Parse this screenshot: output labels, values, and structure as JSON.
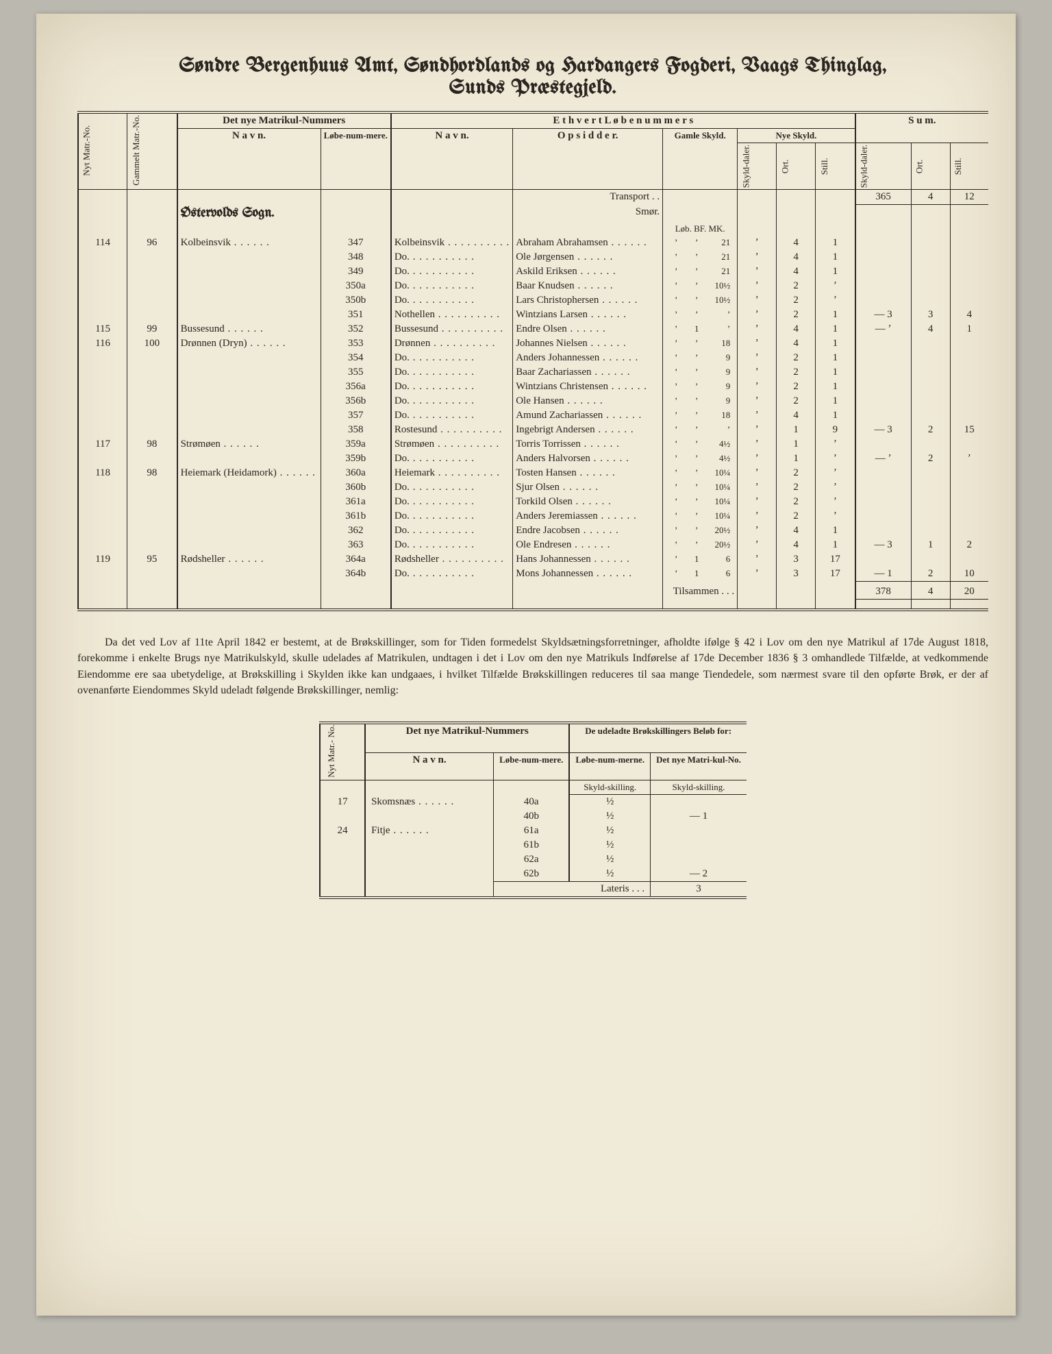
{
  "title_line1": "Søndre Bergenhuus Amt, Søndhordlands og Hardangers Fogderi, Vaags Thinglag,",
  "title_line2": "Sunds Præstegjeld.",
  "hdr": {
    "nyt_matr_no": "Nyt Matr.-No.",
    "gammelt_matr_no": "Gammelt Matr.-No.",
    "det_nye": "Det nye Matrikul-Nummers",
    "navn": "N a v n.",
    "lobenummere": "Løbe-num-mere.",
    "ethvert": "E t h v e r t   L ø b e n u m m e r s",
    "opsidder": "O p s i d d e r.",
    "gamle_skyld": "Gamle Skyld.",
    "nye_skyld": "Nye Skyld.",
    "skyld_daler": "Skyld-daler.",
    "ort": "Ort.",
    "still": "Still.",
    "sum": "S u m."
  },
  "transport": "Transport . .",
  "smor": "Smør.",
  "units": "Løb. BF. MK.",
  "sogn": "Østervolds Sogn.",
  "tilsammen": "Tilsammen . . .",
  "transport_sum": {
    "daler": "365",
    "ort": "4",
    "still": "12"
  },
  "tilsammen_sum": {
    "daler": "378",
    "ort": "4",
    "still": "20"
  },
  "rows": [
    {
      "nyt": "114",
      "gml": "96",
      "navn": "Kolbeinsvik",
      "lnr": "347",
      "lobnavn": "Kolbeinsvik",
      "ops": "Abraham Abrahamsen",
      "gs1": "ʼ",
      "gs2": "ʼ",
      "gs3": "21",
      "nd": "ʼ",
      "no": "4",
      "ns": "1",
      "sd": "",
      "so": "",
      "ss": ""
    },
    {
      "nyt": "",
      "gml": "",
      "navn": "",
      "lnr": "348",
      "lobnavn": "Do.",
      "ops": "Ole Jørgensen",
      "gs1": "ʼ",
      "gs2": "ʼ",
      "gs3": "21",
      "nd": "ʼ",
      "no": "4",
      "ns": "1",
      "sd": "",
      "so": "",
      "ss": ""
    },
    {
      "nyt": "",
      "gml": "",
      "navn": "",
      "lnr": "349",
      "lobnavn": "Do.",
      "ops": "Askild Eriksen",
      "gs1": "ʼ",
      "gs2": "ʼ",
      "gs3": "21",
      "nd": "ʼ",
      "no": "4",
      "ns": "1",
      "sd": "",
      "so": "",
      "ss": ""
    },
    {
      "nyt": "",
      "gml": "",
      "navn": "",
      "lnr": "350a",
      "lobnavn": "Do.",
      "ops": "Baar Knudsen",
      "gs1": "ʼ",
      "gs2": "ʼ",
      "gs3": "10½",
      "nd": "ʼ",
      "no": "2",
      "ns": "ʼ",
      "sd": "",
      "so": "",
      "ss": ""
    },
    {
      "nyt": "",
      "gml": "",
      "navn": "",
      "lnr": "350b",
      "lobnavn": "Do.",
      "ops": "Lars Christophersen",
      "gs1": "ʼ",
      "gs2": "ʼ",
      "gs3": "10½",
      "nd": "ʼ",
      "no": "2",
      "ns": "ʼ",
      "sd": "",
      "so": "",
      "ss": ""
    },
    {
      "nyt": "",
      "gml": "",
      "navn": "",
      "lnr": "351",
      "lobnavn": "Nothellen",
      "ops": "Wintzians Larsen",
      "gs1": "ʼ",
      "gs2": "ʼ",
      "gs3": "ʼ",
      "nd": "ʼ",
      "no": "2",
      "ns": "1",
      "sd": "— 3",
      "so": "3",
      "ss": "4"
    },
    {
      "nyt": "115",
      "gml": "99",
      "navn": "Bussesund",
      "lnr": "352",
      "lobnavn": "Bussesund",
      "ops": "Endre Olsen",
      "gs1": "ʼ",
      "gs2": "1",
      "gs3": "ʼ",
      "nd": "ʼ",
      "no": "4",
      "ns": "1",
      "sd": "— ʼ",
      "so": "4",
      "ss": "1"
    },
    {
      "nyt": "116",
      "gml": "100",
      "navn": "Drønnen (Dryn)",
      "lnr": "353",
      "lobnavn": "Drønnen",
      "ops": "Johannes Nielsen",
      "gs1": "ʼ",
      "gs2": "ʼ",
      "gs3": "18",
      "nd": "ʼ",
      "no": "4",
      "ns": "1",
      "sd": "",
      "so": "",
      "ss": ""
    },
    {
      "nyt": "",
      "gml": "",
      "navn": "",
      "lnr": "354",
      "lobnavn": "Do.",
      "ops": "Anders Johannessen",
      "gs1": "ʼ",
      "gs2": "ʼ",
      "gs3": "9",
      "nd": "ʼ",
      "no": "2",
      "ns": "1",
      "sd": "",
      "so": "",
      "ss": ""
    },
    {
      "nyt": "",
      "gml": "",
      "navn": "",
      "lnr": "355",
      "lobnavn": "Do.",
      "ops": "Baar Zachariassen",
      "gs1": "ʼ",
      "gs2": "ʼ",
      "gs3": "9",
      "nd": "ʼ",
      "no": "2",
      "ns": "1",
      "sd": "",
      "so": "",
      "ss": ""
    },
    {
      "nyt": "",
      "gml": "",
      "navn": "",
      "lnr": "356a",
      "lobnavn": "Do.",
      "ops": "Wintzians Christensen",
      "gs1": "ʼ",
      "gs2": "ʼ",
      "gs3": "9",
      "nd": "ʼ",
      "no": "2",
      "ns": "1",
      "sd": "",
      "so": "",
      "ss": ""
    },
    {
      "nyt": "",
      "gml": "",
      "navn": "",
      "lnr": "356b",
      "lobnavn": "Do.",
      "ops": "Ole Hansen",
      "gs1": "ʼ",
      "gs2": "ʼ",
      "gs3": "9",
      "nd": "ʼ",
      "no": "2",
      "ns": "1",
      "sd": "",
      "so": "",
      "ss": ""
    },
    {
      "nyt": "",
      "gml": "",
      "navn": "",
      "lnr": "357",
      "lobnavn": "Do.",
      "ops": "Amund Zachariassen",
      "gs1": "ʼ",
      "gs2": "ʼ",
      "gs3": "18",
      "nd": "ʼ",
      "no": "4",
      "ns": "1",
      "sd": "",
      "so": "",
      "ss": ""
    },
    {
      "nyt": "",
      "gml": "",
      "navn": "",
      "lnr": "358",
      "lobnavn": "Rostesund",
      "ops": "Ingebrigt Andersen",
      "gs1": "ʼ",
      "gs2": "ʼ",
      "gs3": "ʼ",
      "nd": "ʼ",
      "no": "1",
      "ns": "9",
      "sd": "— 3",
      "so": "2",
      "ss": "15"
    },
    {
      "nyt": "117",
      "gml": "98",
      "navn": "Strømøen",
      "lnr": "359a",
      "lobnavn": "Strømøen",
      "ops": "Torris Torrissen",
      "gs1": "ʼ",
      "gs2": "ʼ",
      "gs3": "4½",
      "nd": "ʼ",
      "no": "1",
      "ns": "ʼ",
      "sd": "",
      "so": "",
      "ss": ""
    },
    {
      "nyt": "",
      "gml": "",
      "navn": "",
      "lnr": "359b",
      "lobnavn": "Do.",
      "ops": "Anders Halvorsen",
      "gs1": "ʼ",
      "gs2": "ʼ",
      "gs3": "4½",
      "nd": "ʼ",
      "no": "1",
      "ns": "ʼ",
      "sd": "— ʼ",
      "so": "2",
      "ss": "ʼ"
    },
    {
      "nyt": "118",
      "gml": "98",
      "navn": "Heiemark (Heidamork)",
      "lnr": "360a",
      "lobnavn": "Heiemark",
      "ops": "Tosten Hansen",
      "gs1": "ʼ",
      "gs2": "ʼ",
      "gs3": "10¼",
      "nd": "ʼ",
      "no": "2",
      "ns": "ʼ",
      "sd": "",
      "so": "",
      "ss": ""
    },
    {
      "nyt": "",
      "gml": "",
      "navn": "",
      "lnr": "360b",
      "lobnavn": "Do.",
      "ops": "Sjur Olsen",
      "gs1": "ʼ",
      "gs2": "ʼ",
      "gs3": "10¼",
      "nd": "ʼ",
      "no": "2",
      "ns": "ʼ",
      "sd": "",
      "so": "",
      "ss": ""
    },
    {
      "nyt": "",
      "gml": "",
      "navn": "",
      "lnr": "361a",
      "lobnavn": "Do.",
      "ops": "Torkild Olsen",
      "gs1": "ʼ",
      "gs2": "ʼ",
      "gs3": "10¼",
      "nd": "ʼ",
      "no": "2",
      "ns": "ʼ",
      "sd": "",
      "so": "",
      "ss": ""
    },
    {
      "nyt": "",
      "gml": "",
      "navn": "",
      "lnr": "361b",
      "lobnavn": "Do.",
      "ops": "Anders Jeremiassen",
      "gs1": "ʼ",
      "gs2": "ʼ",
      "gs3": "10¼",
      "nd": "ʼ",
      "no": "2",
      "ns": "ʼ",
      "sd": "",
      "so": "",
      "ss": ""
    },
    {
      "nyt": "",
      "gml": "",
      "navn": "",
      "lnr": "362",
      "lobnavn": "Do.",
      "ops": "Endre Jacobsen",
      "gs1": "ʼ",
      "gs2": "ʼ",
      "gs3": "20½",
      "nd": "ʼ",
      "no": "4",
      "ns": "1",
      "sd": "",
      "so": "",
      "ss": ""
    },
    {
      "nyt": "",
      "gml": "",
      "navn": "",
      "lnr": "363",
      "lobnavn": "Do.",
      "ops": "Ole Endresen",
      "gs1": "ʼ",
      "gs2": "ʼ",
      "gs3": "20½",
      "nd": "ʼ",
      "no": "4",
      "ns": "1",
      "sd": "— 3",
      "so": "1",
      "ss": "2"
    },
    {
      "nyt": "119",
      "gml": "95",
      "navn": "Rødsheller",
      "lnr": "364a",
      "lobnavn": "Rødsheller",
      "ops": "Hans Johannessen",
      "gs1": "ʼ",
      "gs2": "1",
      "gs3": "6",
      "nd": "ʼ",
      "no": "3",
      "ns": "17",
      "sd": "",
      "so": "",
      "ss": ""
    },
    {
      "nyt": "",
      "gml": "",
      "navn": "",
      "lnr": "364b",
      "lobnavn": "Do.",
      "ops": "Mons Johannessen",
      "gs1": "ʼ",
      "gs2": "1",
      "gs3": "6",
      "nd": "ʼ",
      "no": "3",
      "ns": "17",
      "sd": "— 1",
      "so": "2",
      "ss": "10"
    }
  ],
  "paragraph": "Da det ved Lov af 11te April 1842 er bestemt, at de Brøkskillinger, som for Tiden formedelst Skyldsætningsforretninger, afholdte ifølge § 42 i Lov om den nye Matrikul af 17de August 1818, forekomme i enkelte Brugs nye Matrikulskyld, skulle udelades af Matrikulen, undtagen i det i Lov om den nye Matrikuls Indførelse af 17de December 1836 § 3 omhandlede Tilfælde, at vedkommende Eiendomme ere saa ubetydelige, at Brøkskilling i Skylden ikke kan undgaaes, i hvilket Tilfælde Brøkskillingen reduceres til saa mange Tiendedele, som nærmest svare til den opførte Brøk, er der af ovenanførte Eiendommes Skyld udeladt følgende Brøkskillinger, nemlig:",
  "sub": {
    "hdr_nyt": "Nyt Matr.- No.",
    "hdr_det_nye": "Det nye Matrikul-Nummers",
    "hdr_navn": "N a v n.",
    "hdr_lobe": "Løbe-num-mere.",
    "hdr_belob": "De udeladte Brøkskillingers Beløb for:",
    "hdr_lobenummerne": "Løbe-num-merne.",
    "hdr_matrno": "Det nye Matri-kul-No.",
    "sub_still1": "Skyld-skilling.",
    "sub_still2": "Skyld-skilling.",
    "rows": [
      {
        "no": "17",
        "navn": "Skomsnæs",
        "l": "40a",
        "v1": "½",
        "v2": ""
      },
      {
        "no": "",
        "navn": "",
        "l": "40b",
        "v1": "½",
        "v2": "— 1"
      },
      {
        "no": "24",
        "navn": "Fitje",
        "l": "61a",
        "v1": "½",
        "v2": ""
      },
      {
        "no": "",
        "navn": "",
        "l": "61b",
        "v1": "½",
        "v2": ""
      },
      {
        "no": "",
        "navn": "",
        "l": "62a",
        "v1": "½",
        "v2": ""
      },
      {
        "no": "",
        "navn": "",
        "l": "62b",
        "v1": "½",
        "v2": "— 2"
      }
    ],
    "lateris": "Lateris . . .",
    "lateris_val": "3"
  }
}
